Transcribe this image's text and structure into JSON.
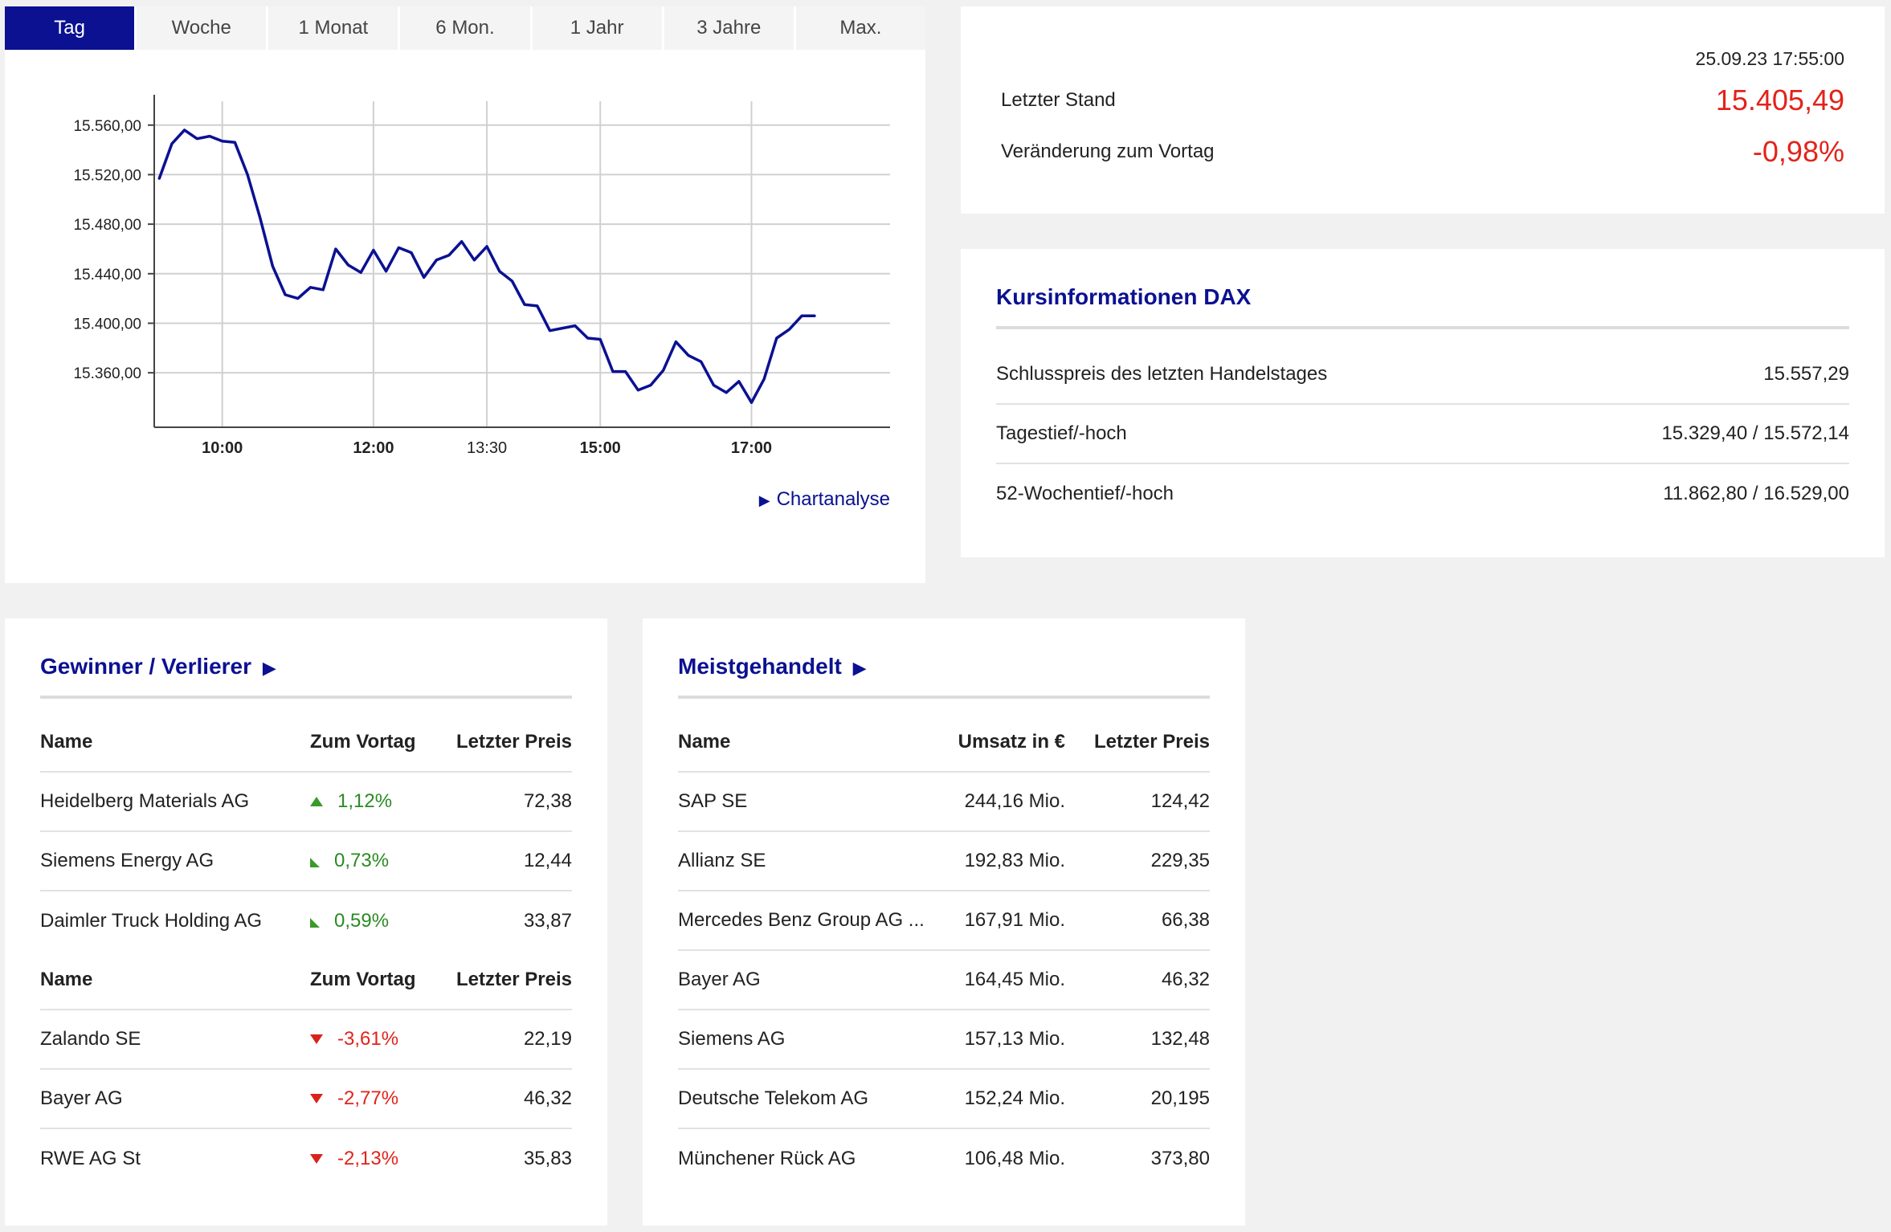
{
  "tabs": [
    {
      "label": "Tag",
      "active": true
    },
    {
      "label": "Woche",
      "active": false
    },
    {
      "label": "1 Monat",
      "active": false
    },
    {
      "label": "6 Mon.",
      "active": false
    },
    {
      "label": "1 Jahr",
      "active": false
    },
    {
      "label": "3 Jahre",
      "active": false
    },
    {
      "label": "Max.",
      "active": false
    }
  ],
  "chart_link": "Chartanalyse",
  "chart_link_icon": "play-triangle-icon",
  "chart_data": {
    "type": "line",
    "title": "",
    "xlabel": "",
    "ylabel": "",
    "x_ticks": [
      {
        "label": "10:00",
        "bold": true,
        "t": "10:00"
      },
      {
        "label": "12:00",
        "bold": true,
        "t": "12:00"
      },
      {
        "label": "13:30",
        "bold": false,
        "t": "13:30"
      },
      {
        "label": "15:00",
        "bold": true,
        "t": "15:00"
      },
      {
        "label": "17:00",
        "bold": true,
        "t": "17:00"
      }
    ],
    "y_ticks": [
      "15.560,00",
      "15.520,00",
      "15.480,00",
      "15.440,00",
      "15.400,00",
      "15.360,00"
    ],
    "y_tick_values": [
      15560,
      15520,
      15480,
      15440,
      15400,
      15360
    ],
    "ylim": [
      15316,
      15578
    ],
    "xlim": [
      "09:06",
      "18:50"
    ],
    "grid": true,
    "line_color": "#0b1191",
    "series": [
      {
        "x": [
          "09:10",
          "09:20",
          "09:30",
          "09:40",
          "09:50",
          "10:00",
          "10:10",
          "10:20",
          "10:30",
          "10:40",
          "10:50",
          "11:00",
          "11:10",
          "11:20",
          "11:30",
          "11:40",
          "11:50",
          "12:00",
          "12:10",
          "12:20",
          "12:30",
          "12:40",
          "12:50",
          "13:00",
          "13:10",
          "13:20",
          "13:30",
          "13:40",
          "13:50",
          "14:00",
          "14:10",
          "14:20",
          "14:30",
          "14:40",
          "14:50",
          "15:00",
          "15:10",
          "15:20",
          "15:30",
          "15:40",
          "15:50",
          "16:00",
          "16:10",
          "16:20",
          "16:30",
          "16:40",
          "16:50",
          "17:00",
          "17:10",
          "17:20",
          "17:30",
          "17:40",
          "17:50"
        ],
        "y": [
          15517,
          15545,
          15556,
          15549,
          15551,
          15547,
          15546,
          15520,
          15485,
          15446,
          15423,
          15420,
          15429,
          15427,
          15460,
          15447,
          15441,
          15459,
          15442,
          15461,
          15457,
          15437,
          15451,
          15455,
          15466,
          15451,
          15462,
          15442,
          15434,
          15415,
          15414,
          15394,
          15396,
          15398,
          15388,
          15387,
          15361,
          15361,
          15346,
          15350,
          15362,
          15385,
          15374,
          15369,
          15350,
          15344,
          15353,
          15336,
          15355,
          15388,
          15395,
          15406,
          15406
        ]
      }
    ]
  },
  "quote": {
    "timestamp": "25.09.23 17:55:00",
    "last_label": "Letzter Stand",
    "last_value": "15.405,49",
    "change_label": "Veränderung zum Vortag",
    "change_value": "-0,98%"
  },
  "info": {
    "title": "Kursinformationen DAX",
    "rows": [
      {
        "label": "Schlusspreis des letzten Handelstages",
        "value": "15.557,29"
      },
      {
        "label": "Tagestief/-hoch",
        "value": "15.329,40 / 15.572,14"
      },
      {
        "label": "52-Wochentief/-hoch",
        "value": "11.862,80 / 16.529,00"
      }
    ]
  },
  "gainers_losers": {
    "title": "Gewinner / Verlierer",
    "title_icon": "play-triangle-icon",
    "header": {
      "name": "Name",
      "change": "Zum Vortag",
      "price": "Letzter Preis"
    },
    "gainers": [
      {
        "name": "Heidelberg Materials AG",
        "change": "1,12%",
        "price": "72,38",
        "icon": "arrow-up-icon"
      },
      {
        "name": "Siemens Energy AG",
        "change": "0,73%",
        "price": "12,44",
        "icon": "arrow-up-right-icon"
      },
      {
        "name": "Daimler Truck Holding AG",
        "change": "0,59%",
        "price": "33,87",
        "icon": "arrow-up-right-icon"
      }
    ],
    "losers": [
      {
        "name": "Zalando SE",
        "change": "-3,61%",
        "price": "22,19",
        "icon": "arrow-down-icon"
      },
      {
        "name": "Bayer AG",
        "change": "-2,77%",
        "price": "46,32",
        "icon": "arrow-down-icon"
      },
      {
        "name": "RWE AG St",
        "change": "-2,13%",
        "price": "35,83",
        "icon": "arrow-down-icon"
      }
    ]
  },
  "most_traded": {
    "title": "Meistgehandelt",
    "title_icon": "play-triangle-icon",
    "header": {
      "name": "Name",
      "turnover": "Umsatz in €",
      "price": "Letzter Preis"
    },
    "rows": [
      {
        "name": "SAP SE",
        "turnover": "244,16 Mio.",
        "price": "124,42"
      },
      {
        "name": "Allianz SE",
        "turnover": "192,83 Mio.",
        "price": "229,35"
      },
      {
        "name": "Mercedes Benz Group AG ...",
        "turnover": "167,91 Mio.",
        "price": "66,38"
      },
      {
        "name": "Bayer AG",
        "turnover": "164,45 Mio.",
        "price": "46,32"
      },
      {
        "name": "Siemens AG",
        "turnover": "157,13 Mio.",
        "price": "132,48"
      },
      {
        "name": "Deutsche Telekom AG",
        "turnover": "152,24 Mio.",
        "price": "20,195"
      },
      {
        "name": "Münchener Rück AG",
        "turnover": "106,48 Mio.",
        "price": "373,80"
      }
    ]
  }
}
